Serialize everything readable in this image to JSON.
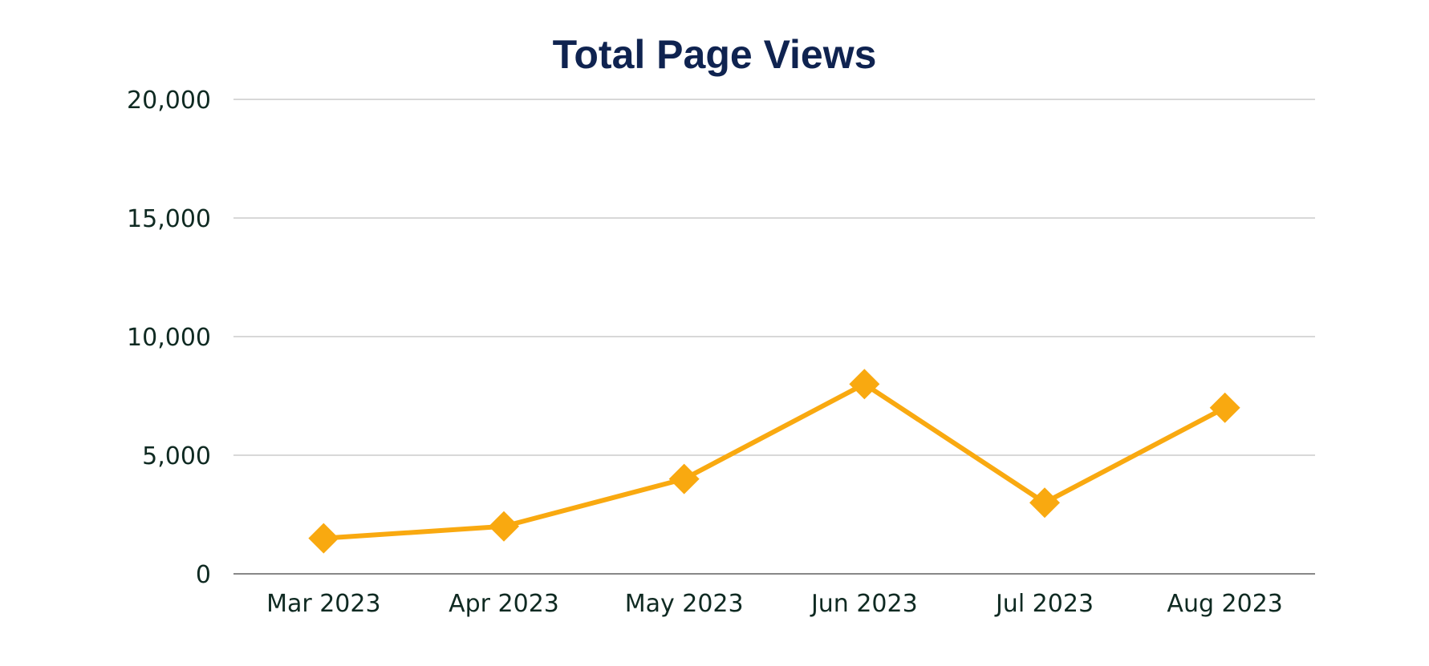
{
  "chart_data": {
    "type": "line",
    "title": "Total Page Views",
    "xlabel": "",
    "ylabel": "",
    "categories": [
      "Mar 2023",
      "Apr 2023",
      "May 2023",
      "Jun 2023",
      "Jul 2023",
      "Aug 2023"
    ],
    "series": [
      {
        "values": [
          1500,
          2000,
          4000,
          8000,
          3000,
          7000
        ],
        "color": "#f9a910",
        "marker": "diamond"
      }
    ],
    "ylim": [
      0,
      20000
    ],
    "yticks": [
      "0",
      "5,000",
      "10,000",
      "15,000",
      "20,000"
    ],
    "ytick_values": [
      0,
      5000,
      10000,
      15000,
      20000
    ],
    "grid": true,
    "legend": "none",
    "colors": {
      "title": "#0f2350",
      "tick_text": "#0f2a22",
      "grid": "#cccccc",
      "axis": "#888888",
      "line": "#f9a910"
    }
  }
}
